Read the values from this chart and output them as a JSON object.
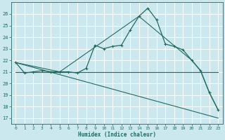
{
  "xlabel": "Humidex (Indice chaleur)",
  "xlim": [
    -0.5,
    23.5
  ],
  "ylim": [
    16.5,
    27
  ],
  "yticks": [
    17,
    18,
    19,
    20,
    21,
    22,
    23,
    24,
    25,
    26
  ],
  "xticks": [
    0,
    1,
    2,
    3,
    4,
    5,
    6,
    7,
    8,
    9,
    10,
    11,
    12,
    13,
    14,
    15,
    16,
    17,
    18,
    19,
    20,
    21,
    22,
    23
  ],
  "bg_color": "#cce8ef",
  "grid_color": "#ffffff",
  "line_color": "#1e6b5e",
  "series_main": {
    "x": [
      0,
      1,
      2,
      3,
      4,
      5,
      6,
      7,
      8,
      9,
      10,
      11,
      12,
      13,
      14,
      15,
      16,
      17,
      18,
      19,
      20,
      21,
      22,
      23
    ],
    "y": [
      21.8,
      20.9,
      21.0,
      21.1,
      21.0,
      21.0,
      21.0,
      20.9,
      21.3,
      23.3,
      23.0,
      23.2,
      23.3,
      24.6,
      25.8,
      26.5,
      25.5,
      23.4,
      23.2,
      22.9,
      22.0,
      21.1,
      19.2,
      17.7
    ]
  },
  "series_flat": {
    "x": [
      0,
      23
    ],
    "y": [
      21.0,
      21.0
    ]
  },
  "series_triangle": {
    "x": [
      0,
      5,
      14,
      20,
      21,
      22,
      23
    ],
    "y": [
      21.8,
      21.0,
      25.8,
      22.0,
      21.1,
      19.2,
      17.7
    ]
  },
  "series_diagonal": {
    "x": [
      0,
      23
    ],
    "y": [
      21.8,
      17.0
    ]
  }
}
